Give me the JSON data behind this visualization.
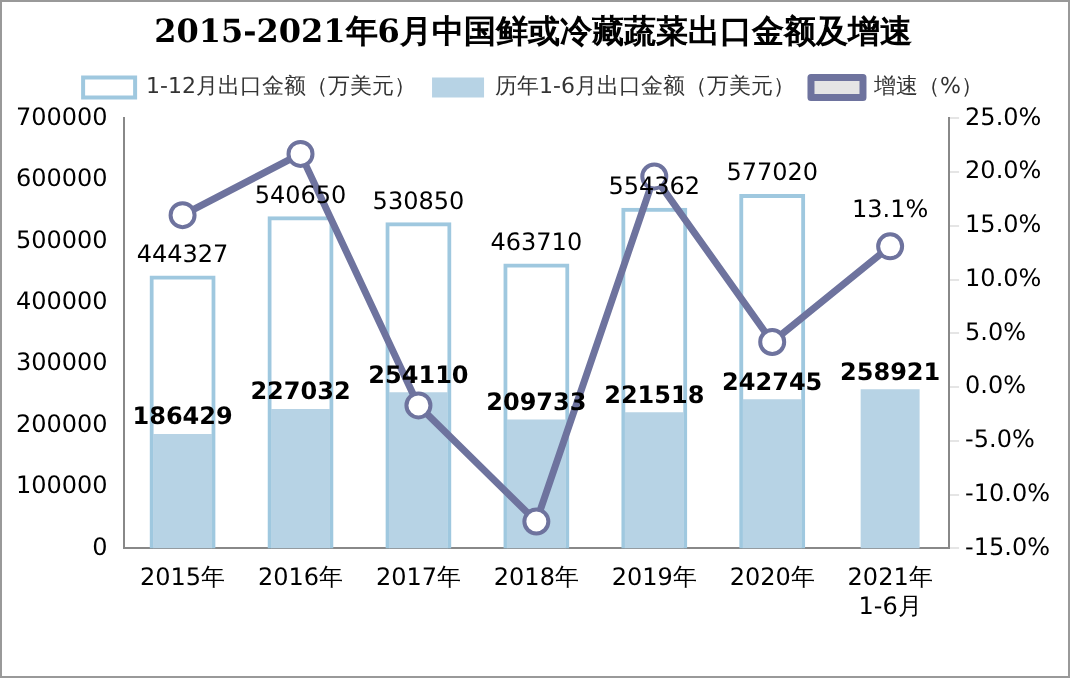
{
  "chart_data": {
    "type": "bar",
    "title": "2015-2021年6月中国鲜或冷藏蔬菜出口金额及增速",
    "categories": [
      "2015年",
      "2016年",
      "2017年",
      "2018年",
      "2019年",
      "2020年",
      "2021年\n1-6月"
    ],
    "series": [
      {
        "name": "1-12月出口金额（万美元）",
        "color": "#9fc8df",
        "values": [
          444327,
          540650,
          530850,
          463710,
          554362,
          577020,
          null
        ],
        "value_labels": [
          "444327",
          "540650",
          "530850",
          "463710",
          "554362",
          "577020",
          null
        ]
      },
      {
        "name": "历年1-6月出口金额（万美元）",
        "color": "#b7d3e5",
        "values": [
          186429,
          227032,
          254110,
          209733,
          221518,
          242745,
          258921
        ],
        "value_labels": [
          "186429",
          "227032",
          "254110",
          "209733",
          "221518",
          "242745",
          "258921"
        ]
      },
      {
        "name": "增速（%）",
        "type": "line",
        "axis": "y2",
        "color": "#6e739e",
        "marker": "circle",
        "values": [
          16.0,
          21.7,
          -1.7,
          -12.5,
          19.6,
          4.2,
          13.1
        ],
        "value_labels": [
          null,
          null,
          null,
          null,
          null,
          null,
          "13.1%"
        ]
      }
    ],
    "ylim": [
      0,
      700000
    ],
    "yticks": [
      0,
      100000,
      200000,
      300000,
      400000,
      500000,
      600000,
      700000
    ],
    "y2lim": [
      -15,
      25
    ],
    "y2ticks": [
      {
        "value": -15,
        "label": "-15.0%"
      },
      {
        "value": -10,
        "label": "-10.0%"
      },
      {
        "value": -5,
        "label": "-5.0%"
      },
      {
        "value": 0,
        "label": "0.0%"
      },
      {
        "value": 5,
        "label": "5.0%"
      },
      {
        "value": 10,
        "label": "10.0%"
      },
      {
        "value": 15,
        "label": "15.0%"
      },
      {
        "value": 20,
        "label": "20.0%"
      },
      {
        "value": 25,
        "label": "25.0%"
      }
    ],
    "grid": false,
    "legend": "top"
  }
}
